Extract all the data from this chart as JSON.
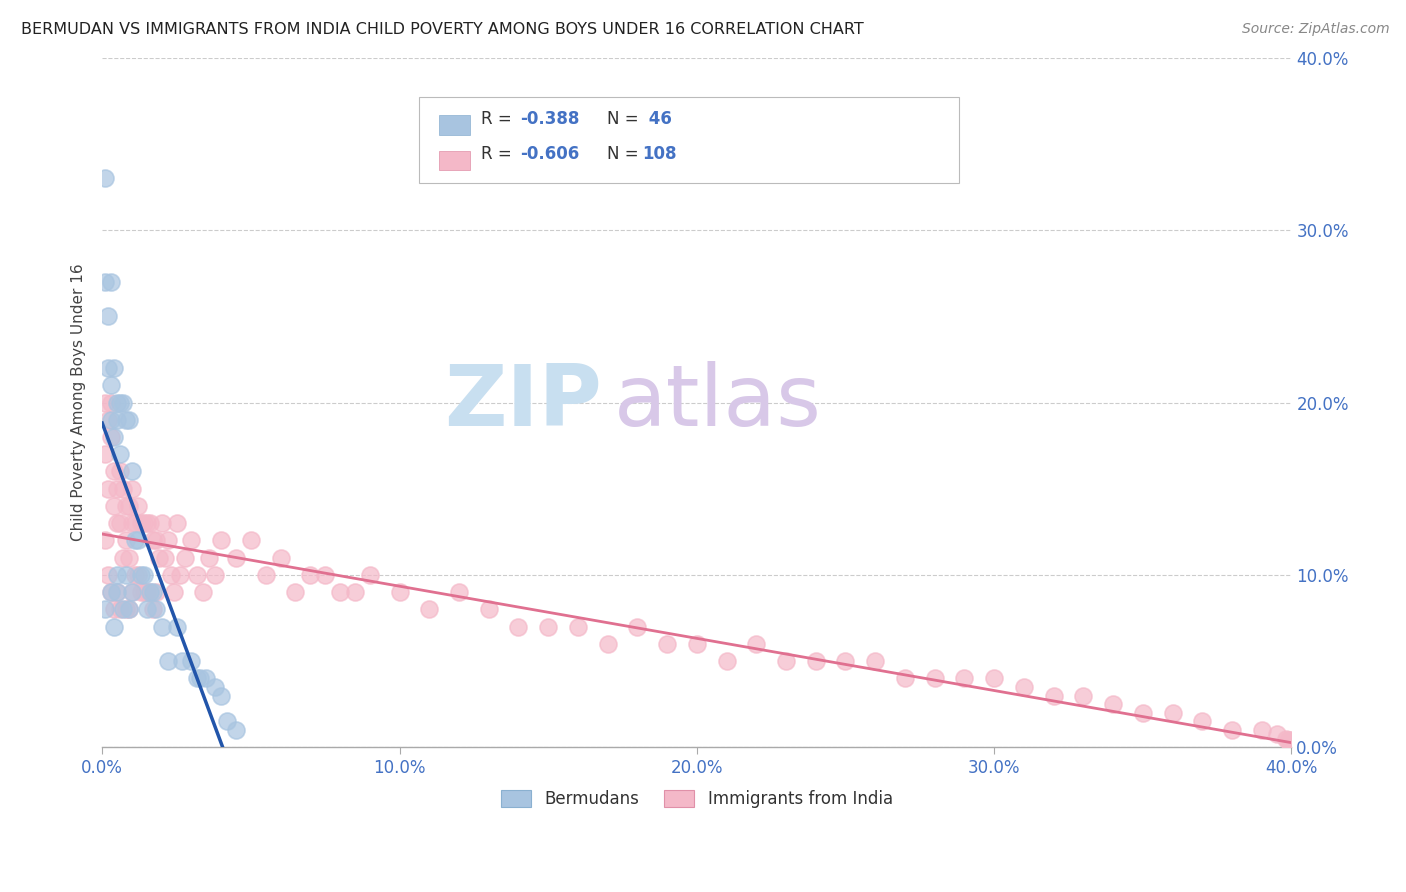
{
  "title": "BERMUDAN VS IMMIGRANTS FROM INDIA CHILD POVERTY AMONG BOYS UNDER 16 CORRELATION CHART",
  "source": "Source: ZipAtlas.com",
  "ylabel_label": "Child Poverty Among Boys Under 16",
  "xlim": [
    0.0,
    0.4
  ],
  "ylim": [
    0.0,
    0.4
  ],
  "bermudan_color": "#a8c4e0",
  "bermudan_edge_color": "#a8c4e0",
  "india_color": "#f4b8c8",
  "india_edge_color": "#f4b8c8",
  "bermudan_line_color": "#2255aa",
  "india_line_color": "#e07090",
  "legend_R1": "-0.388",
  "legend_N1": "46",
  "legend_R2": "-0.606",
  "legend_N2": "108",
  "watermark_zip_color": "#c8dff0",
  "watermark_atlas_color": "#d8c8e8",
  "background_color": "#ffffff",
  "grid_color": "#cccccc",
  "tick_label_color": "#4472c4",
  "bermudan_x": [
    0.001,
    0.001,
    0.001,
    0.002,
    0.002,
    0.003,
    0.003,
    0.003,
    0.003,
    0.004,
    0.004,
    0.004,
    0.005,
    0.005,
    0.005,
    0.005,
    0.006,
    0.006,
    0.007,
    0.007,
    0.008,
    0.008,
    0.009,
    0.009,
    0.01,
    0.01,
    0.011,
    0.012,
    0.013,
    0.014,
    0.015,
    0.016,
    0.017,
    0.018,
    0.02,
    0.022,
    0.025,
    0.027,
    0.03,
    0.032,
    0.033,
    0.035,
    0.038,
    0.04,
    0.042,
    0.045
  ],
  "bermudan_y": [
    0.33,
    0.27,
    0.08,
    0.25,
    0.22,
    0.27,
    0.21,
    0.19,
    0.09,
    0.22,
    0.18,
    0.07,
    0.2,
    0.19,
    0.1,
    0.09,
    0.2,
    0.17,
    0.2,
    0.08,
    0.19,
    0.1,
    0.19,
    0.08,
    0.16,
    0.09,
    0.12,
    0.12,
    0.1,
    0.1,
    0.08,
    0.09,
    0.09,
    0.08,
    0.07,
    0.05,
    0.07,
    0.05,
    0.05,
    0.04,
    0.04,
    0.04,
    0.035,
    0.03,
    0.015,
    0.01
  ],
  "india_x": [
    0.001,
    0.001,
    0.001,
    0.002,
    0.002,
    0.002,
    0.003,
    0.003,
    0.003,
    0.004,
    0.004,
    0.004,
    0.005,
    0.005,
    0.005,
    0.006,
    0.006,
    0.006,
    0.007,
    0.007,
    0.008,
    0.008,
    0.008,
    0.009,
    0.009,
    0.009,
    0.01,
    0.01,
    0.01,
    0.011,
    0.011,
    0.012,
    0.012,
    0.013,
    0.013,
    0.014,
    0.014,
    0.015,
    0.015,
    0.016,
    0.016,
    0.017,
    0.017,
    0.018,
    0.018,
    0.019,
    0.02,
    0.021,
    0.022,
    0.023,
    0.024,
    0.025,
    0.026,
    0.028,
    0.03,
    0.032,
    0.034,
    0.036,
    0.038,
    0.04,
    0.045,
    0.05,
    0.055,
    0.06,
    0.065,
    0.07,
    0.075,
    0.08,
    0.085,
    0.09,
    0.1,
    0.11,
    0.12,
    0.13,
    0.14,
    0.15,
    0.16,
    0.17,
    0.18,
    0.19,
    0.2,
    0.21,
    0.22,
    0.23,
    0.24,
    0.25,
    0.26,
    0.27,
    0.28,
    0.29,
    0.3,
    0.31,
    0.32,
    0.33,
    0.34,
    0.35,
    0.36,
    0.37,
    0.38,
    0.39,
    0.395,
    0.398,
    0.399,
    0.4,
    0.4,
    0.4,
    0.4,
    0.4
  ],
  "india_y": [
    0.2,
    0.17,
    0.12,
    0.19,
    0.15,
    0.1,
    0.2,
    0.18,
    0.09,
    0.16,
    0.14,
    0.08,
    0.15,
    0.13,
    0.09,
    0.16,
    0.13,
    0.08,
    0.15,
    0.11,
    0.14,
    0.12,
    0.08,
    0.14,
    0.11,
    0.08,
    0.15,
    0.13,
    0.09,
    0.13,
    0.1,
    0.14,
    0.1,
    0.13,
    0.09,
    0.13,
    0.09,
    0.13,
    0.09,
    0.13,
    0.09,
    0.12,
    0.08,
    0.12,
    0.09,
    0.11,
    0.13,
    0.11,
    0.12,
    0.1,
    0.09,
    0.13,
    0.1,
    0.11,
    0.12,
    0.1,
    0.09,
    0.11,
    0.1,
    0.12,
    0.11,
    0.12,
    0.1,
    0.11,
    0.09,
    0.1,
    0.1,
    0.09,
    0.09,
    0.1,
    0.09,
    0.08,
    0.09,
    0.08,
    0.07,
    0.07,
    0.07,
    0.06,
    0.07,
    0.06,
    0.06,
    0.05,
    0.06,
    0.05,
    0.05,
    0.05,
    0.05,
    0.04,
    0.04,
    0.04,
    0.04,
    0.035,
    0.03,
    0.03,
    0.025,
    0.02,
    0.02,
    0.015,
    0.01,
    0.01,
    0.008,
    0.005,
    0.004,
    0.003,
    0.004,
    0.002,
    0.001,
    0.001
  ]
}
